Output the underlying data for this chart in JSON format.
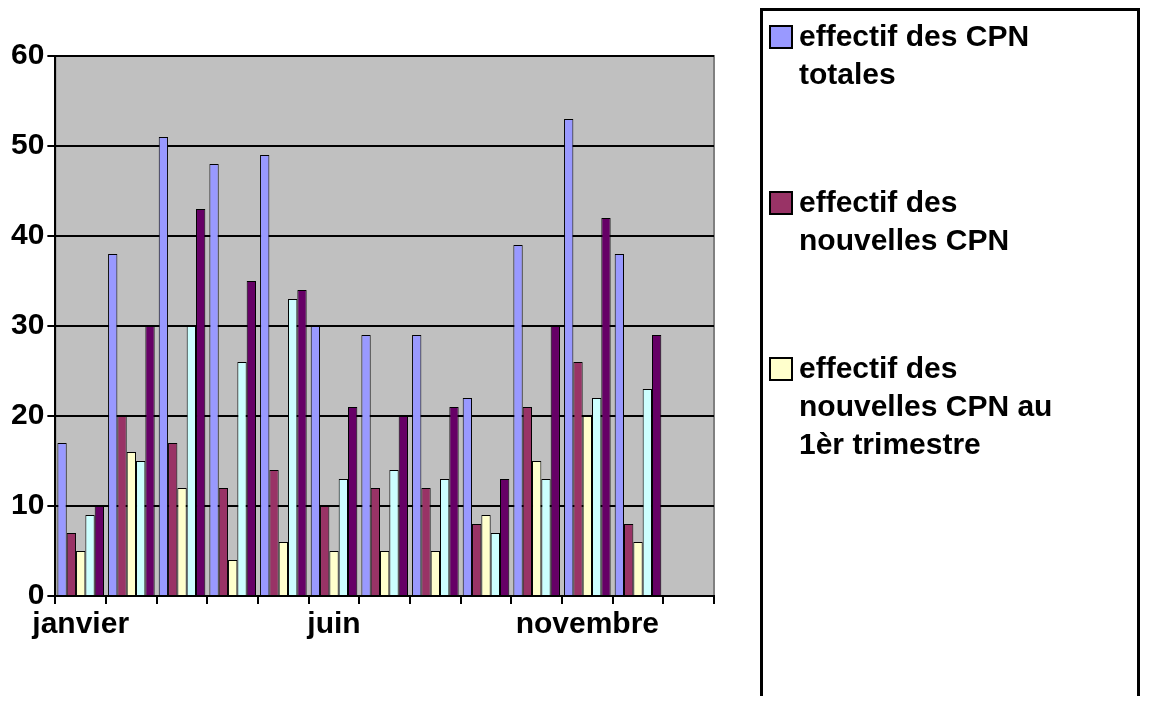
{
  "chart_data": {
    "type": "bar",
    "categories": [
      "janvier",
      null,
      null,
      null,
      null,
      "juin",
      null,
      null,
      null,
      null,
      "novembre",
      null,
      null
    ],
    "series": [
      {
        "name": "effectif des CPN totales",
        "color": "#9999ff",
        "values": [
          17,
          38,
          51,
          48,
          49,
          30,
          29,
          29,
          22,
          39,
          53,
          38,
          null
        ]
      },
      {
        "name": "effectif des nouvelles CPN",
        "color": "#993366",
        "values": [
          7,
          20,
          17,
          12,
          14,
          10,
          12,
          12,
          8,
          21,
          26,
          8,
          null
        ]
      },
      {
        "name": "effectif des nouvelles CPN au 1èr trimestre",
        "color": "#ffffcc",
        "values": [
          5,
          16,
          12,
          4,
          6,
          5,
          5,
          5,
          9,
          15,
          20,
          6,
          null
        ]
      },
      {
        "color": "#ccffff",
        "values": [
          9,
          15,
          30,
          26,
          33,
          13,
          14,
          13,
          7,
          13,
          22,
          23,
          null
        ]
      },
      {
        "color": "#660066",
        "values": [
          10,
          30,
          43,
          35,
          34,
          21,
          20,
          21,
          13,
          30,
          42,
          29,
          null
        ]
      }
    ],
    "ylim": [
      0,
      60
    ],
    "yticks": [
      0,
      10,
      20,
      30,
      40,
      50,
      60
    ],
    "grid": "y",
    "legend": "right"
  }
}
